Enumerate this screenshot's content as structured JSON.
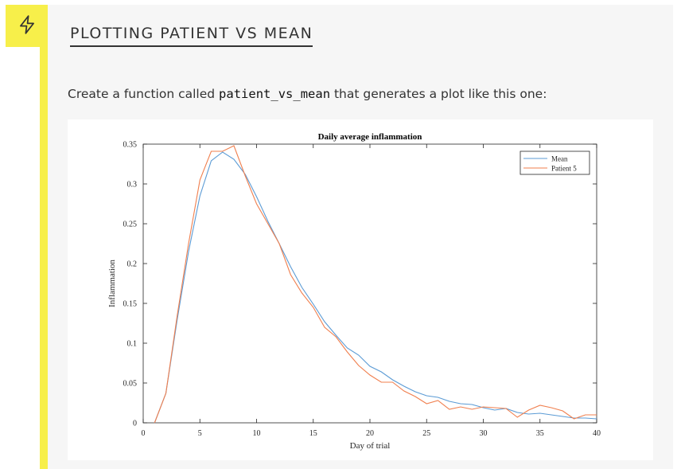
{
  "page": {
    "title": "PLOTTING PATIENT VS MEAN",
    "icon": "lightning-icon",
    "instruction": {
      "before": "Create a function called ",
      "code": "patient_vs_mean",
      "after": " that generates a plot like this one:"
    }
  },
  "colors": {
    "accent": "#f7ef4a",
    "mean_line": "#5b9bd5",
    "patient_line": "#f07f4e"
  },
  "chart_data": {
    "type": "line",
    "title": "Daily average inflammation",
    "xlabel": "Day of trial",
    "ylabel": "Inflammation",
    "xlim": [
      0,
      40
    ],
    "ylim": [
      0,
      0.35
    ],
    "xticks": [
      "0",
      "5",
      "10",
      "15",
      "20",
      "25",
      "30",
      "35",
      "40"
    ],
    "yticks": [
      "0",
      "0.05",
      "0.1",
      "0.15",
      "0.2",
      "0.25",
      "0.3",
      "0.35"
    ],
    "legend_position": "top-right",
    "grid": false,
    "x": [
      1,
      2,
      3,
      4,
      5,
      6,
      7,
      8,
      9,
      10,
      11,
      12,
      13,
      14,
      15,
      16,
      17,
      18,
      19,
      20,
      21,
      22,
      23,
      24,
      25,
      26,
      27,
      28,
      29,
      30,
      31,
      32,
      33,
      34,
      35,
      36,
      37,
      38,
      39,
      40
    ],
    "series": [
      {
        "name": "Mean",
        "values": [
          0,
          0.037,
          0.13,
          0.215,
          0.285,
          0.329,
          0.34,
          0.331,
          0.312,
          0.284,
          0.253,
          0.225,
          0.196,
          0.17,
          0.149,
          0.127,
          0.11,
          0.094,
          0.085,
          0.071,
          0.064,
          0.054,
          0.046,
          0.039,
          0.034,
          0.032,
          0.027,
          0.024,
          0.023,
          0.019,
          0.016,
          0.018,
          0.013,
          0.011,
          0.012,
          0.01,
          0.008,
          0.006,
          0.006,
          0.005
        ]
      },
      {
        "name": "Patient 5",
        "values": [
          0,
          0.037,
          0.135,
          0.225,
          0.305,
          0.341,
          0.341,
          0.348,
          0.31,
          0.275,
          0.25,
          0.225,
          0.186,
          0.163,
          0.145,
          0.12,
          0.108,
          0.089,
          0.072,
          0.06,
          0.051,
          0.051,
          0.04,
          0.033,
          0.024,
          0.028,
          0.017,
          0.02,
          0.017,
          0.02,
          0.019,
          0.018,
          0.007,
          0.016,
          0.022,
          0.019,
          0.015,
          0.005,
          0.01,
          0.01
        ]
      }
    ]
  }
}
